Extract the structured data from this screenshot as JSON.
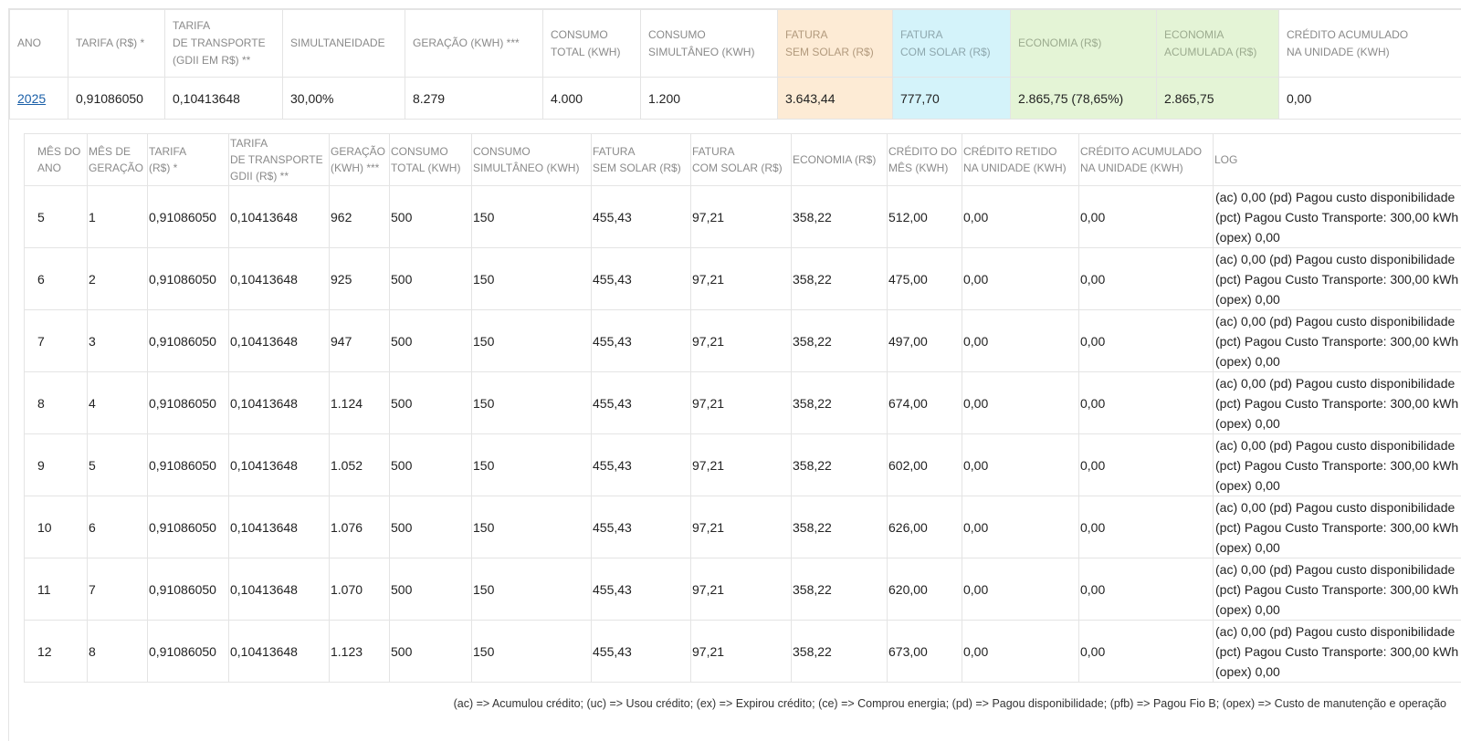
{
  "summary": {
    "headers": [
      "ANO",
      "TARIFA (R$) *",
      "TARIFA\nDE TRANSPORTE\n(GDII EM R$) **",
      "SIMULTANEIDADE",
      "GERAÇÃO (KWH) ***",
      "CONSUMO\nTOTAL (KWH)",
      "CONSUMO\nSIMULTÂNEO (KWH)",
      "FATURA\nSEM SOLAR (R$)",
      "FATURA\nCOM SOLAR (R$)",
      "ECONOMIA (R$)",
      "ECONOMIA\nACUMULADA (R$)",
      "CRÉDITO ACUMULADO\nNA UNIDADE (KWH)"
    ],
    "row": {
      "ano": "2025",
      "tarifa": "0,91086050",
      "tarifa_transporte": "0,10413648",
      "simultaneidade": "30,00%",
      "geracao": "8.279",
      "consumo_total": "4.000",
      "consumo_simultaneo": "1.200",
      "fatura_sem_solar": "3.643,44",
      "fatura_com_solar": "777,70",
      "economia": "2.865,75 (78,65%)",
      "economia_acumulada": "2.865,75",
      "credito_acumulado": "0,00"
    }
  },
  "detail": {
    "headers": [
      "MÊS DO\nANO",
      "MÊS DE\nGERAÇÃO",
      "TARIFA\n(R$) *",
      "TARIFA\nDE TRANSPORTE\nGDII (R$) **",
      "GERAÇÃO\n(KWH) ***",
      "CONSUMO\nTOTAL (KWH)",
      "CONSUMO\nSIMULTÂNEO (KWH)",
      "FATURA\nSEM SOLAR (R$)",
      "FATURA\nCOM SOLAR (R$)",
      "ECONOMIA (R$)",
      "CRÉDITO DO\nMÊS (KWH)",
      "CRÉDITO RETIDO\nNA UNIDADE (KWH)",
      "CRÉDITO ACUMULADO\nNA UNIDADE (KWH)",
      "LOG"
    ],
    "rows": [
      [
        "5",
        "1",
        "0,91086050",
        "0,10413648",
        "962",
        "500",
        "150",
        "455,43",
        "97,21",
        "358,22",
        "512,00",
        "0,00",
        "0,00",
        "(ac) 0,00 (pd) Pagou custo disponibilidade (pct) Pagou Custo Transporte: 300,00 kWh (opex) 0,00"
      ],
      [
        "6",
        "2",
        "0,91086050",
        "0,10413648",
        "925",
        "500",
        "150",
        "455,43",
        "97,21",
        "358,22",
        "475,00",
        "0,00",
        "0,00",
        "(ac) 0,00 (pd) Pagou custo disponibilidade (pct) Pagou Custo Transporte: 300,00 kWh (opex) 0,00"
      ],
      [
        "7",
        "3",
        "0,91086050",
        "0,10413648",
        "947",
        "500",
        "150",
        "455,43",
        "97,21",
        "358,22",
        "497,00",
        "0,00",
        "0,00",
        "(ac) 0,00 (pd) Pagou custo disponibilidade (pct) Pagou Custo Transporte: 300,00 kWh (opex) 0,00"
      ],
      [
        "8",
        "4",
        "0,91086050",
        "0,10413648",
        "1.124",
        "500",
        "150",
        "455,43",
        "97,21",
        "358,22",
        "674,00",
        "0,00",
        "0,00",
        "(ac) 0,00 (pd) Pagou custo disponibilidade (pct) Pagou Custo Transporte: 300,00 kWh (opex) 0,00"
      ],
      [
        "9",
        "5",
        "0,91086050",
        "0,10413648",
        "1.052",
        "500",
        "150",
        "455,43",
        "97,21",
        "358,22",
        "602,00",
        "0,00",
        "0,00",
        "(ac) 0,00 (pd) Pagou custo disponibilidade (pct) Pagou Custo Transporte: 300,00 kWh (opex) 0,00"
      ],
      [
        "10",
        "6",
        "0,91086050",
        "0,10413648",
        "1.076",
        "500",
        "150",
        "455,43",
        "97,21",
        "358,22",
        "626,00",
        "0,00",
        "0,00",
        "(ac) 0,00 (pd) Pagou custo disponibilidade (pct) Pagou Custo Transporte: 300,00 kWh (opex) 0,00"
      ],
      [
        "11",
        "7",
        "0,91086050",
        "0,10413648",
        "1.070",
        "500",
        "150",
        "455,43",
        "97,21",
        "358,22",
        "620,00",
        "0,00",
        "0,00",
        "(ac) 0,00 (pd) Pagou custo disponibilidade (pct) Pagou Custo Transporte: 300,00 kWh (opex) 0,00"
      ],
      [
        "12",
        "8",
        "0,91086050",
        "0,10413648",
        "1.123",
        "500",
        "150",
        "455,43",
        "97,21",
        "358,22",
        "673,00",
        "0,00",
        "0,00",
        "(ac) 0,00 (pd) Pagou custo disponibilidade (pct) Pagou Custo Transporte: 300,00 kWh (opex) 0,00"
      ]
    ]
  },
  "legend": "(ac) => Acumulou crédito; (uc) => Usou crédito; (ex) => Expirou crédito; (ce) => Comprou energia; (pd) => Pagou disponibilidade; (pfb) => Pagou Fio B; (opex) => Custo de manutenção e operação",
  "colors": {
    "fatura_sem_solar_bg": "#fdebd5",
    "fatura_com_solar_bg": "#d4f3fa",
    "economia_bg": "#e4f4d6",
    "link": "#1a5fa8"
  }
}
